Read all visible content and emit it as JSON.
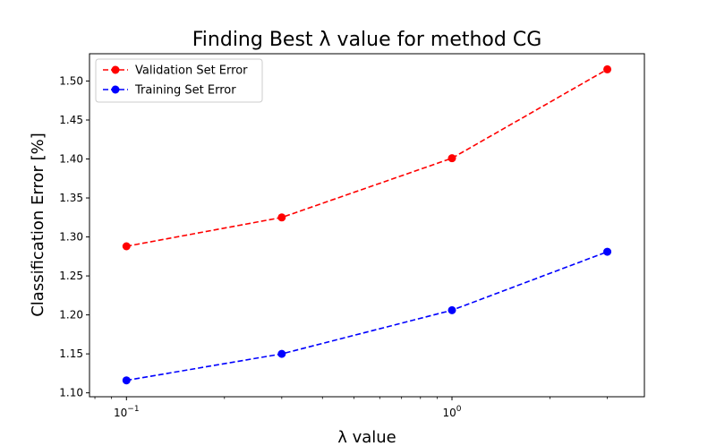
{
  "chart_data": {
    "type": "line",
    "title": "Finding Best λ value for method CG",
    "xlabel": "λ value",
    "ylabel": "Classification Error [%]",
    "x_scale": "log",
    "x": [
      0.1,
      0.3,
      1.0,
      3.0
    ],
    "xlim": [
      0.077,
      3.9
    ],
    "ylim": [
      1.095,
      1.535
    ],
    "x_ticks": [
      {
        "value": 0.1,
        "base": "10",
        "exp": "−1"
      },
      {
        "value": 1.0,
        "base": "10",
        "exp": "0"
      }
    ],
    "y_ticks": [
      "1.10",
      "1.15",
      "1.20",
      "1.25",
      "1.30",
      "1.35",
      "1.40",
      "1.45",
      "1.50"
    ],
    "grid": false,
    "legend_position": "top-left",
    "series": [
      {
        "name": "Validation Set Error",
        "color": "#ff0000",
        "values": [
          1.288,
          1.325,
          1.401,
          1.515
        ]
      },
      {
        "name": "Training Set Error",
        "color": "#0000ff",
        "values": [
          1.116,
          1.15,
          1.206,
          1.281
        ]
      }
    ]
  }
}
